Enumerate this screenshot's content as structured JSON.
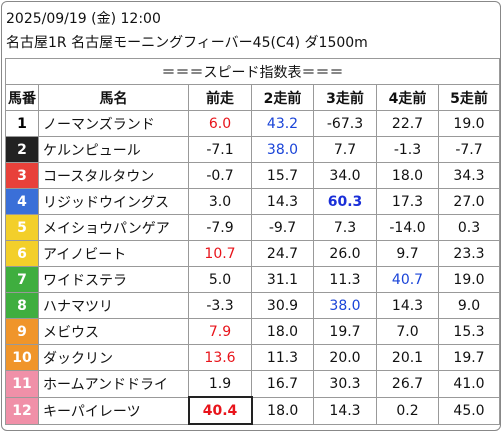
{
  "header": {
    "date": "2025/09/19 (金) 12:00",
    "race": "名古屋1R 名古屋モーニングフィーバー45(C4) ダ1500m"
  },
  "table": {
    "title": "＝＝＝スピード指数表＝＝＝",
    "columns": [
      "馬番",
      "馬名",
      "前走",
      "2走前",
      "3走前",
      "4走前",
      "5走前"
    ],
    "rows": [
      {
        "no": "1",
        "frame_color": "#ffffff",
        "no_color": "#000000",
        "name": "ノーマンズランド",
        "values": [
          "6.0",
          "43.2",
          "-67.3",
          "22.7",
          "19.0"
        ],
        "highlights": [
          {
            "col": 0,
            "color": "#e8141b"
          },
          {
            "col": 1,
            "color": "#1a44d8"
          }
        ]
      },
      {
        "no": "2",
        "frame_color": "#222222",
        "no_color": "#ffffff",
        "name": "ケルンピュール",
        "values": [
          "-7.1",
          "38.0",
          "7.7",
          "-1.3",
          "-7.7"
        ],
        "highlights": [
          {
            "col": 1,
            "color": "#1a44d8"
          }
        ]
      },
      {
        "no": "3",
        "frame_color": "#e8413a",
        "no_color": "#ffffff",
        "name": "コースタルタウン",
        "values": [
          "-0.7",
          "15.7",
          "34.0",
          "18.0",
          "34.3"
        ],
        "highlights": []
      },
      {
        "no": "4",
        "frame_color": "#3a6fd8",
        "no_color": "#ffffff",
        "name": "リジッドウイングス",
        "values": [
          "3.0",
          "14.3",
          "60.3",
          "17.3",
          "27.0"
        ],
        "highlights": [
          {
            "col": 2,
            "color": "#1a2fd8",
            "bold": true
          }
        ]
      },
      {
        "no": "5",
        "frame_color": "#f3cf2a",
        "no_color": "#ffffff",
        "name": "メイショウパンゲア",
        "values": [
          "-7.9",
          "-9.7",
          "7.3",
          "-14.0",
          "0.3"
        ],
        "highlights": []
      },
      {
        "no": "6",
        "frame_color": "#f3cf2a",
        "no_color": "#ffffff",
        "name": "アイノビート",
        "values": [
          "10.7",
          "24.7",
          "26.0",
          "9.7",
          "23.3"
        ],
        "highlights": [
          {
            "col": 0,
            "color": "#e8141b"
          }
        ]
      },
      {
        "no": "7",
        "frame_color": "#3fae3f",
        "no_color": "#ffffff",
        "name": "ワイドステラ",
        "values": [
          "5.0",
          "31.1",
          "11.3",
          "40.7",
          "19.0"
        ],
        "highlights": [
          {
            "col": 3,
            "color": "#1a44d8"
          }
        ]
      },
      {
        "no": "8",
        "frame_color": "#3fae3f",
        "no_color": "#ffffff",
        "name": "ハナマツリ",
        "values": [
          "-3.3",
          "30.9",
          "38.0",
          "14.3",
          "9.0"
        ],
        "highlights": [
          {
            "col": 2,
            "color": "#1a44d8"
          }
        ]
      },
      {
        "no": "9",
        "frame_color": "#f0952a",
        "no_color": "#ffffff",
        "name": "メビウス",
        "values": [
          "7.9",
          "18.0",
          "19.7",
          "7.0",
          "15.3"
        ],
        "highlights": [
          {
            "col": 0,
            "color": "#e8141b"
          }
        ]
      },
      {
        "no": "10",
        "frame_color": "#f0952a",
        "no_color": "#ffffff",
        "name": "ダックリン",
        "values": [
          "13.6",
          "11.3",
          "20.0",
          "20.1",
          "19.7"
        ],
        "highlights": [
          {
            "col": 0,
            "color": "#e8141b"
          }
        ]
      },
      {
        "no": "11",
        "frame_color": "#f090a8",
        "no_color": "#ffffff",
        "name": "ホームアンドドライ",
        "values": [
          "1.9",
          "16.7",
          "30.3",
          "26.7",
          "41.0"
        ],
        "highlights": []
      },
      {
        "no": "12",
        "frame_color": "#f090a8",
        "no_color": "#ffffff",
        "name": "キーパイレーツ",
        "values": [
          "40.4",
          "18.0",
          "14.3",
          "0.2",
          "45.0"
        ],
        "highlights": [
          {
            "col": 0,
            "color": "#e8141b",
            "bold": true
          }
        ]
      }
    ]
  }
}
